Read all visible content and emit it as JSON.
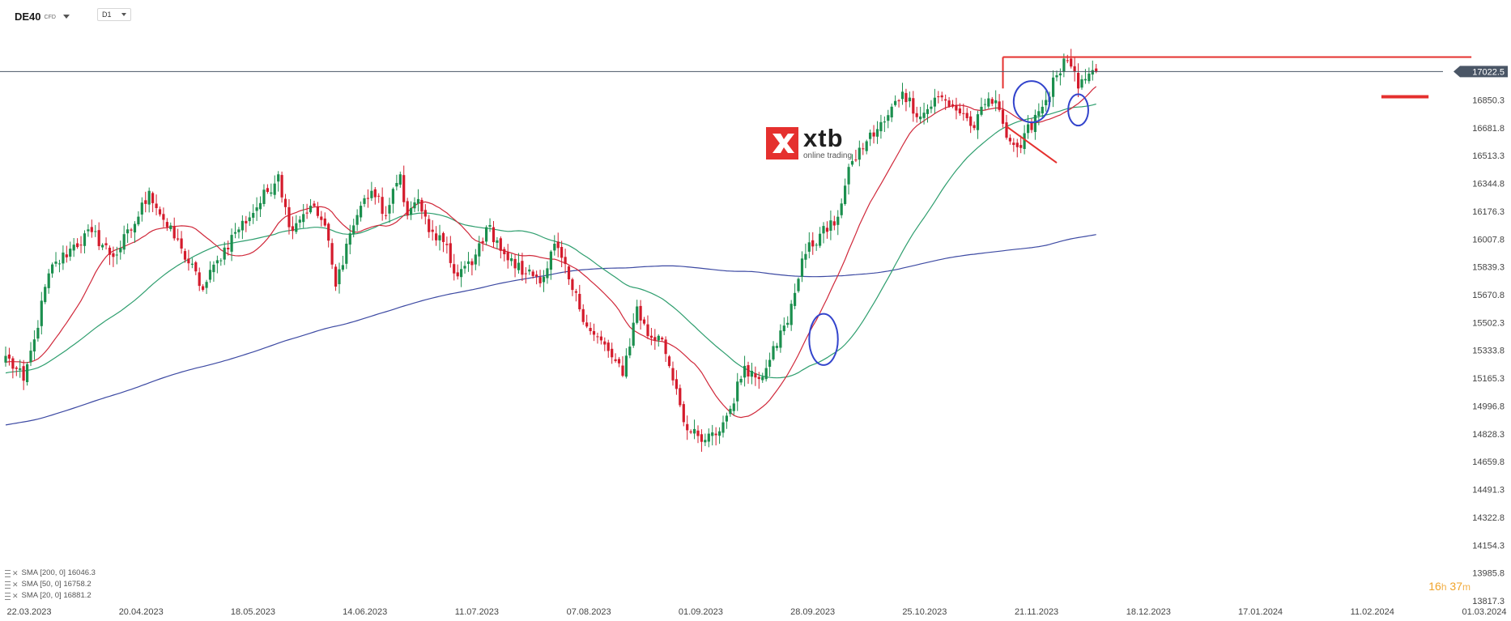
{
  "header": {
    "symbol": "DE40",
    "instrument_type": "CFD",
    "timeframe": "D1"
  },
  "price_badge": {
    "value": "17022.5",
    "color": "#4a5666"
  },
  "logo": {
    "name": "xtb",
    "tagline": "online trading",
    "color": "#e5302e"
  },
  "timer": {
    "hours": "16",
    "h_unit": "h",
    "minutes": "37",
    "m_unit": "m"
  },
  "legend": [
    {
      "label": "SMA [200, 0]",
      "value": "16046.3"
    },
    {
      "label": "SMA [50, 0]",
      "value": "16758.2"
    },
    {
      "label": "SMA [20, 0]",
      "value": "16881.2"
    }
  ],
  "chart_data": {
    "type": "candlestick",
    "instrument": "DE40",
    "timeframe": "D1",
    "ylim": [
      13817.3,
      17191.0
    ],
    "y_ticks": [
      "17022.5",
      "16850.3",
      "16681.8",
      "16513.3",
      "16344.8",
      "16176.3",
      "16007.8",
      "15839.3",
      "15670.8",
      "15502.3",
      "15333.8",
      "15165.3",
      "14996.8",
      "14828.3",
      "14659.8",
      "14491.3",
      "14322.8",
      "14154.3",
      "13985.8",
      "13817.3"
    ],
    "x_ticks": [
      "22.03.2023",
      "20.04.2023",
      "18.05.2023",
      "14.06.2023",
      "11.07.2023",
      "07.08.2023",
      "01.09.2023",
      "28.09.2023",
      "25.10.2023",
      "21.11.2023",
      "18.12.2023",
      "17.01.2024",
      "11.02.2024",
      "01.03.2024"
    ],
    "up_color": "#1b8f4e",
    "down_color": "#d41b2c",
    "close_anchors": [
      [
        0,
        15300
      ],
      [
        5,
        15150
      ],
      [
        8,
        15400
      ],
      [
        12,
        15800
      ],
      [
        18,
        15950
      ],
      [
        24,
        16050
      ],
      [
        30,
        15900
      ],
      [
        36,
        16100
      ],
      [
        40,
        16300
      ],
      [
        45,
        16080
      ],
      [
        49,
        15950
      ],
      [
        55,
        15700
      ],
      [
        59,
        15880
      ],
      [
        64,
        16050
      ],
      [
        70,
        16200
      ],
      [
        76,
        16400
      ],
      [
        79,
        16080
      ],
      [
        85,
        16210
      ],
      [
        89,
        16090
      ],
      [
        92,
        15720
      ],
      [
        95,
        15980
      ],
      [
        99,
        16210
      ],
      [
        102,
        16300
      ],
      [
        106,
        16150
      ],
      [
        110,
        16400
      ],
      [
        112,
        16150
      ],
      [
        115,
        16250
      ],
      [
        118,
        16050
      ],
      [
        122,
        15990
      ],
      [
        125,
        15800
      ],
      [
        130,
        15850
      ],
      [
        134,
        16080
      ],
      [
        137,
        16000
      ],
      [
        140,
        15880
      ],
      [
        145,
        15800
      ],
      [
        150,
        15780
      ],
      [
        153,
        15980
      ],
      [
        158,
        15700
      ],
      [
        163,
        15450
      ],
      [
        168,
        15330
      ],
      [
        172,
        15180
      ],
      [
        176,
        15600
      ],
      [
        179,
        15420
      ],
      [
        183,
        15400
      ],
      [
        187,
        15100
      ],
      [
        190,
        14850
      ],
      [
        194,
        14780
      ],
      [
        198,
        14820
      ],
      [
        202,
        14980
      ],
      [
        206,
        15240
      ],
      [
        210,
        15160
      ],
      [
        214,
        15360
      ],
      [
        218,
        15500
      ],
      [
        222,
        15890
      ],
      [
        227,
        16040
      ],
      [
        231,
        16090
      ],
      [
        236,
        16480
      ],
      [
        240,
        16600
      ],
      [
        245,
        16720
      ],
      [
        250,
        16900
      ],
      [
        255,
        16750
      ],
      [
        260,
        16870
      ],
      [
        264,
        16810
      ],
      [
        268,
        16740
      ],
      [
        270,
        16680
      ],
      [
        274,
        16860
      ],
      [
        277,
        16790
      ],
      [
        280,
        16600
      ],
      [
        283,
        16560
      ],
      [
        287,
        16760
      ],
      [
        290,
        16850
      ],
      [
        293,
        17000
      ],
      [
        296,
        17090
      ],
      [
        299,
        16920
      ],
      [
        302,
        17010
      ],
      [
        304,
        17022
      ]
    ],
    "series": [
      {
        "name": "SMA [200, 0]",
        "period": 200,
        "color": "#3d4aa3",
        "last": 16046.3
      },
      {
        "name": "SMA [50, 0]",
        "period": 50,
        "color": "#2e9e6e",
        "last": 16758.2
      },
      {
        "name": "SMA [20, 0]",
        "period": 20,
        "color": "#d0283a",
        "last": 16881.2
      }
    ],
    "current_price": 17022.5,
    "grid": false,
    "annotations": [
      {
        "type": "line",
        "color": "#e5302e",
        "points": [
          [
            "idx",
            278,
            17110
          ],
          [
            "date",
            "27.02.2024",
            17110
          ]
        ]
      },
      {
        "type": "line",
        "color": "#e5302e",
        "points": [
          [
            "idx",
            278,
            17110
          ],
          [
            "idx",
            278,
            16920
          ]
        ]
      },
      {
        "type": "line",
        "color": "#e5302e",
        "points": [
          [
            "idx",
            279,
            16690
          ],
          [
            "idx",
            293,
            16470
          ]
        ]
      },
      {
        "type": "line",
        "color": "#e5302e",
        "thick": true,
        "points": [
          [
            "date",
            "06.02.2024",
            16870
          ],
          [
            "date",
            "17.02.2024",
            16870
          ]
        ]
      },
      {
        "type": "ellipse",
        "color": "#3344cc",
        "center": [
          "idx",
          286,
          16840
        ],
        "rx_days": 5,
        "ry": 125
      },
      {
        "type": "ellipse",
        "color": "#3344cc",
        "center": [
          "idx",
          299,
          16790
        ],
        "rx_days": 2.8,
        "ry": 95
      },
      {
        "type": "ellipse",
        "color": "#3344cc",
        "center": [
          "idx",
          228,
          15400
        ],
        "rx_days": 4,
        "ry": 155
      }
    ]
  }
}
